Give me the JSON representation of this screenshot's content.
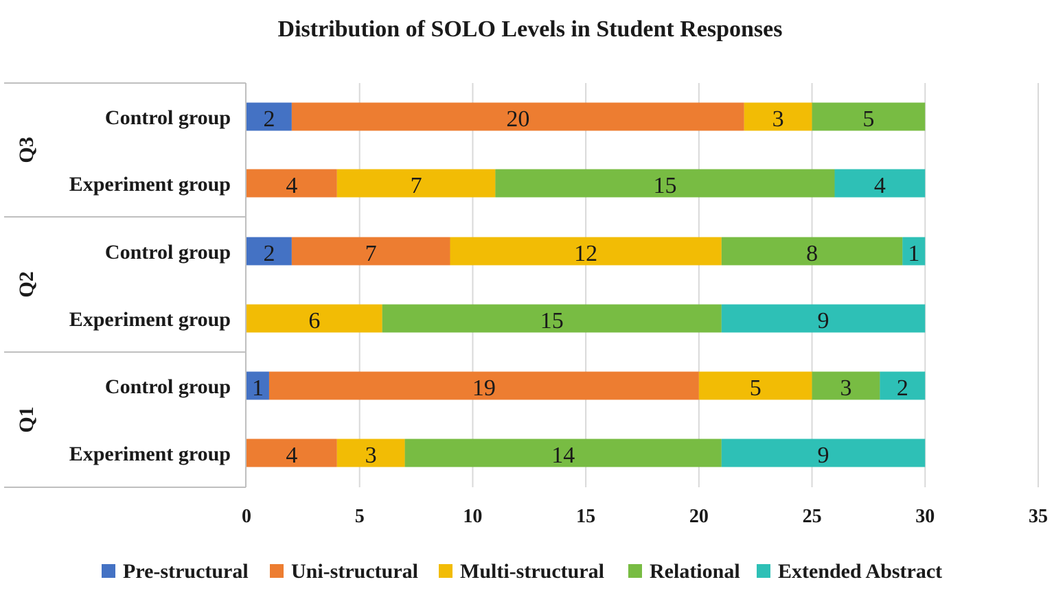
{
  "chart_data": {
    "type": "bar",
    "orientation": "horizontal",
    "stacked": true,
    "title": "Distribution of SOLO Levels in Student Responses",
    "xlim": [
      0,
      35
    ],
    "xticks": [
      0,
      5,
      10,
      15,
      20,
      25,
      30,
      35
    ],
    "grid": "vertical",
    "legend_position": "bottom",
    "groups": [
      {
        "label": "Q3",
        "categories": [
          "Control group",
          "Experiment group"
        ]
      },
      {
        "label": "Q2",
        "categories": [
          "Control group",
          "Experiment group"
        ]
      },
      {
        "label": "Q1",
        "categories": [
          "Control group",
          "Experiment group"
        ]
      }
    ],
    "series": [
      {
        "name": "Pre-structural",
        "color": "#4472C4",
        "values": [
          2,
          0,
          2,
          0,
          1,
          0
        ]
      },
      {
        "name": "Uni-structural",
        "color": "#ED7D31",
        "values": [
          20,
          4,
          7,
          0,
          19,
          4
        ]
      },
      {
        "name": "Multi-structural",
        "color": "#F2BC05",
        "values": [
          3,
          7,
          12,
          6,
          5,
          3
        ]
      },
      {
        "name": "Relational",
        "color": "#78BC43",
        "values": [
          5,
          15,
          8,
          15,
          3,
          14
        ]
      },
      {
        "name": "Extended Abstract",
        "color": "#2EC0B6",
        "values": [
          0,
          4,
          1,
          9,
          2,
          9
        ]
      }
    ]
  }
}
